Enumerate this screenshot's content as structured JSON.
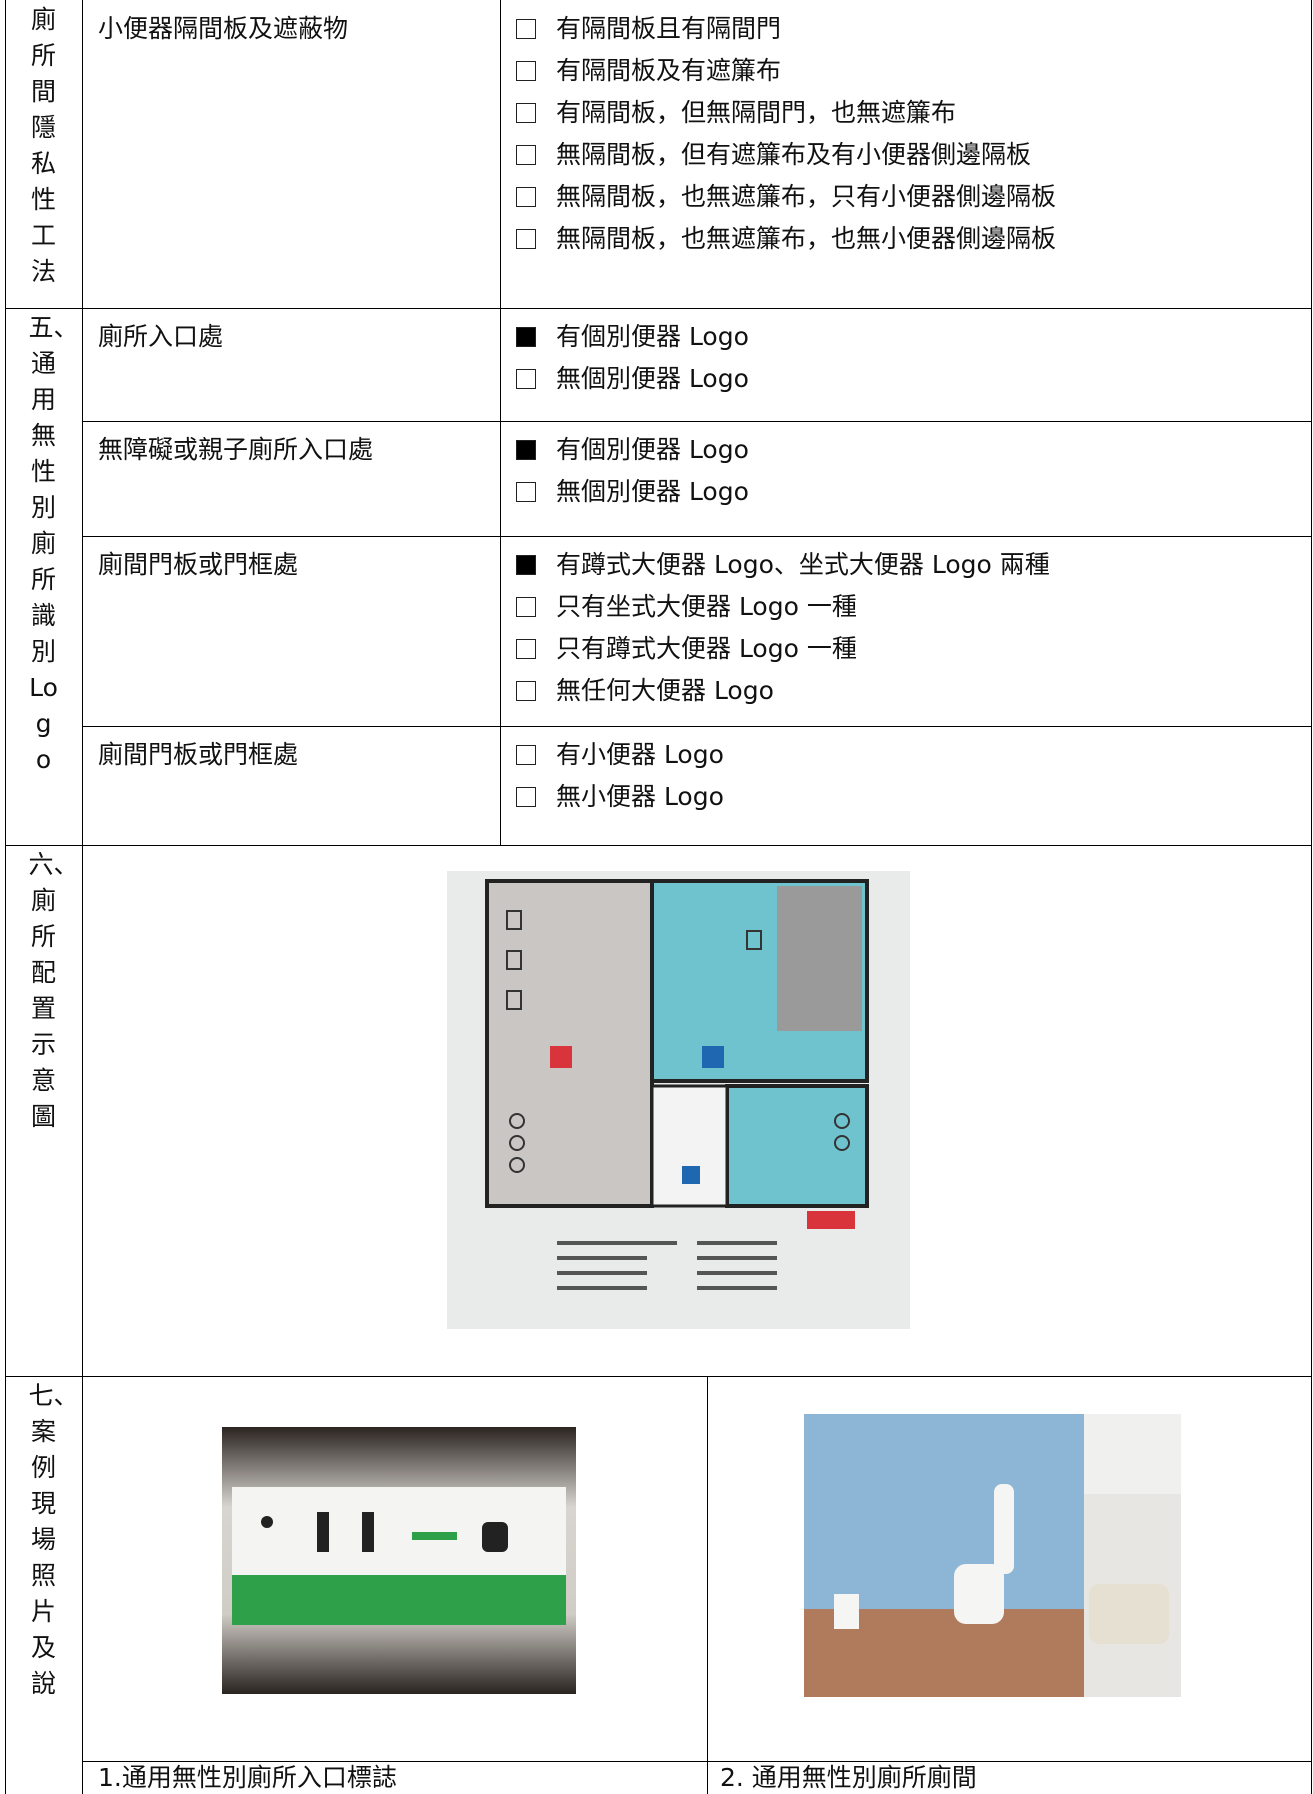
{
  "rows": [
    {
      "section": "廁所間隱私性工法",
      "items": [
        {
          "label": "小便器隔間板及遮蔽物",
          "options": [
            {
              "text": "有隔間板且有隔間門",
              "checked": false
            },
            {
              "text": "有隔間板及有遮簾布",
              "checked": false
            },
            {
              "text": "有隔間板，但無隔間門，也無遮簾布",
              "checked": false
            },
            {
              "text": "無隔間板，但有遮簾布及有小便器側邊隔板",
              "checked": false
            },
            {
              "text": "無隔間板，也無遮簾布，只有小便器側邊隔板",
              "checked": false
            },
            {
              "text": "無隔間板，也無遮簾布，也無小便器側邊隔板",
              "checked": false
            }
          ]
        }
      ]
    },
    {
      "section": "五、通用無性別廁所識別Logo",
      "items": [
        {
          "label": "廁所入口處",
          "options": [
            {
              "text": "有個別便器 Logo",
              "checked": true
            },
            {
              "text": "無個別便器 Logo",
              "checked": false
            }
          ]
        },
        {
          "label": "無障礙或親子廁所入口處",
          "options": [
            {
              "text": "有個別便器 Logo",
              "checked": true
            },
            {
              "text": "無個別便器 Logo",
              "checked": false
            }
          ]
        },
        {
          "label": "廁間門板或門框處",
          "options": [
            {
              "text": "有蹲式大便器 Logo、坐式大便器 Logo 兩種",
              "checked": true
            },
            {
              "text": "只有坐式大便器 Logo 一種",
              "checked": false
            },
            {
              "text": "只有蹲式大便器 Logo 一種",
              "checked": false
            },
            {
              "text": "無任何大便器 Logo",
              "checked": false
            }
          ]
        },
        {
          "label": "廁間門板或門框處",
          "options": [
            {
              "text": "有小便器 Logo",
              "checked": false
            },
            {
              "text": "無小便器 Logo",
              "checked": false
            }
          ]
        }
      ]
    },
    {
      "section": "六、廁所配置示意圖"
    },
    {
      "section": "七、案例現場照片及說",
      "photos": [
        {
          "caption": "1.通用無性別廁所入口標誌"
        },
        {
          "caption": "2. 通用無性別廁所廁間"
        }
      ]
    }
  ]
}
